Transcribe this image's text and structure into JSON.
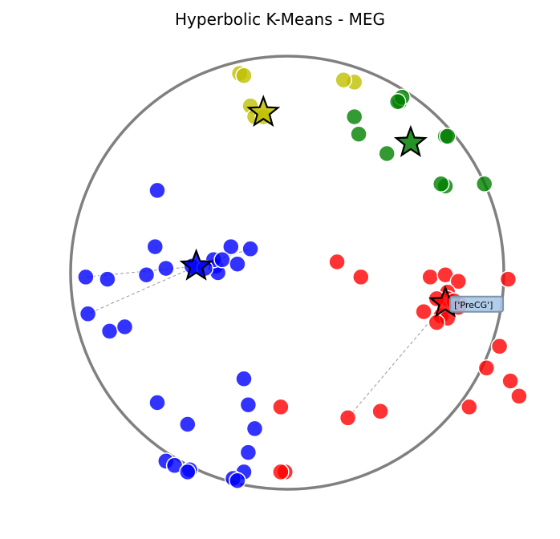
{
  "chart_data": {
    "type": "scatter",
    "title": "Hyperbolic K-Means - MEG",
    "xlim": [
      -1.0,
      1.0
    ],
    "ylim": [
      -1.0,
      1.0
    ],
    "grid": false,
    "axes_visible": false,
    "boundary": {
      "shape": "unit-circle",
      "color": "#808080"
    },
    "annotation": {
      "text": "['PreCG']",
      "target_series": 3,
      "color": "#a8c8e8"
    },
    "series": [
      {
        "color": "#0000ff",
        "points": [
          [
            -0.6,
            0.38
          ],
          [
            -0.61,
            0.12
          ],
          [
            -0.26,
            0.12
          ],
          [
            -0.56,
            0.02
          ],
          [
            -0.44,
            0.03
          ],
          [
            -0.33,
            0.03
          ],
          [
            -0.32,
            0.0
          ],
          [
            -0.34,
            0.06
          ],
          [
            -0.3,
            0.06
          ],
          [
            -0.38,
            0.02
          ],
          [
            -0.23,
            0.04
          ],
          [
            -0.17,
            0.11
          ],
          [
            -0.65,
            -0.01
          ],
          [
            -0.93,
            -0.02
          ],
          [
            -0.83,
            -0.03
          ],
          [
            -0.92,
            -0.19
          ],
          [
            -0.82,
            -0.27
          ],
          [
            -0.75,
            -0.25
          ],
          [
            -0.6,
            -0.6
          ],
          [
            -0.46,
            -0.7
          ],
          [
            -0.56,
            -0.87
          ],
          [
            -0.52,
            -0.89
          ],
          [
            -0.45,
            -0.91
          ],
          [
            -0.46,
            -0.92
          ],
          [
            -0.2,
            -0.49
          ],
          [
            -0.18,
            -0.61
          ],
          [
            -0.15,
            -0.72
          ],
          [
            -0.18,
            -0.83
          ],
          [
            -0.2,
            -0.92
          ],
          [
            -0.25,
            -0.95
          ],
          [
            -0.23,
            -0.96
          ]
        ],
        "centroid": [
          -0.42,
          0.03
        ]
      },
      {
        "color": "#bfbf00",
        "points": [
          [
            -0.22,
            0.92
          ],
          [
            -0.2,
            0.91
          ],
          [
            -0.17,
            0.77
          ],
          [
            -0.15,
            0.72
          ],
          [
            -0.11,
            0.72
          ],
          [
            0.31,
            0.88
          ],
          [
            0.26,
            0.89
          ]
        ],
        "centroid": [
          -0.11,
          0.74
        ]
      },
      {
        "color": "#008000",
        "points": [
          [
            0.31,
            0.72
          ],
          [
            0.33,
            0.64
          ],
          [
            0.52,
            0.79
          ],
          [
            0.53,
            0.81
          ],
          [
            0.51,
            0.79
          ],
          [
            0.46,
            0.55
          ],
          [
            0.73,
            0.63
          ],
          [
            0.74,
            0.63
          ],
          [
            0.73,
            0.4
          ],
          [
            0.71,
            0.41
          ],
          [
            0.91,
            0.41
          ]
        ],
        "centroid": [
          0.57,
          0.6
        ]
      },
      {
        "color": "#ff0000",
        "points": [
          [
            0.23,
            0.05
          ],
          [
            0.34,
            -0.02
          ],
          [
            0.66,
            -0.02
          ],
          [
            0.73,
            -0.01
          ],
          [
            0.79,
            -0.04
          ],
          [
            0.74,
            -0.09
          ],
          [
            0.74,
            -0.12
          ],
          [
            0.69,
            -0.12
          ],
          [
            0.77,
            -0.13
          ],
          [
            0.8,
            -0.15
          ],
          [
            0.79,
            -0.16
          ],
          [
            0.71,
            -0.2
          ],
          [
            0.74,
            -0.21
          ],
          [
            0.69,
            -0.23
          ],
          [
            0.63,
            -0.18
          ],
          [
            1.02,
            -0.03
          ],
          [
            0.98,
            -0.34
          ],
          [
            0.92,
            -0.44
          ],
          [
            1.03,
            -0.5
          ],
          [
            0.84,
            -0.62
          ],
          [
            1.07,
            -0.57
          ],
          [
            0.28,
            -0.67
          ],
          [
            0.43,
            -0.64
          ],
          [
            -0.03,
            -0.62
          ],
          [
            -0.01,
            -0.92
          ],
          [
            -0.03,
            -0.92
          ]
        ],
        "centroid": [
          0.73,
          -0.14
        ]
      }
    ]
  }
}
